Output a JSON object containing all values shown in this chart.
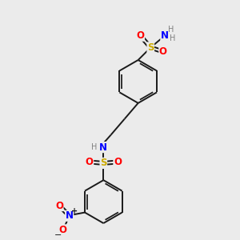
{
  "bg_color": "#ebebeb",
  "bond_color": "#1a1a1a",
  "colors": {
    "N": "#0000ff",
    "O": "#ff0000",
    "S": "#ccaa00",
    "H": "#808080"
  },
  "figsize": [
    3.0,
    3.0
  ],
  "dpi": 100,
  "lw": 1.4,
  "fs": 8.5
}
